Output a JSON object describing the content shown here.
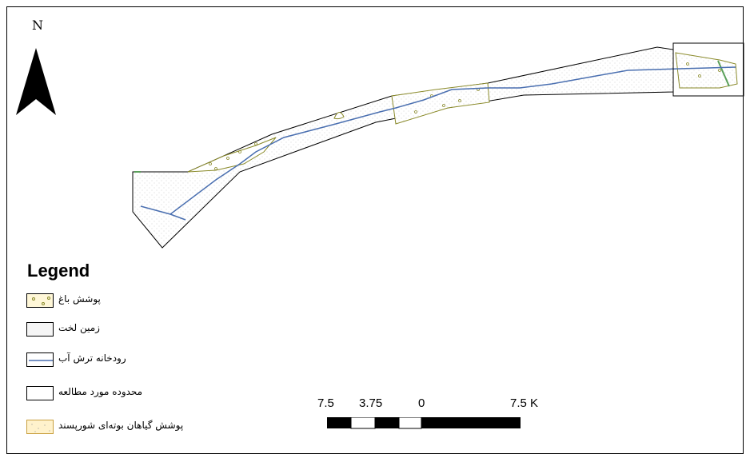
{
  "map": {
    "north_label": "N",
    "colors": {
      "river": "#4a6fb0",
      "orchard_outline": "#8a8a2a",
      "orchard_symbol": "#5aa05a",
      "bare_land_fill": "#f2f2f2",
      "boundary": "#000000"
    }
  },
  "legend": {
    "title": "Legend",
    "items": [
      {
        "label": "پوشش باغ",
        "symbol": "orchard-pattern"
      },
      {
        "label": "زمین لخت",
        "symbol": "bare-land-pattern"
      },
      {
        "label": "رودخانه ترش آب",
        "symbol": "river-line"
      },
      {
        "label": "محدوده مورد مطالعه",
        "symbol": "study-area-outline"
      },
      {
        "label": "پوشش گیاهان بوته‌ای شورپسند",
        "symbol": "halophyte-pattern"
      }
    ]
  },
  "scale_bar": {
    "labels": [
      "7.5",
      "3.75",
      "0",
      "7.5 K"
    ]
  }
}
